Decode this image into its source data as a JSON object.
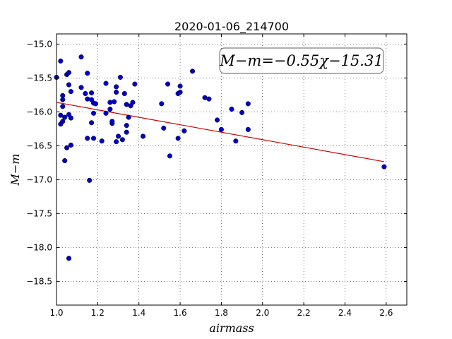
{
  "chart_data": {
    "type": "scatter",
    "title": "2020-01-06_214700",
    "xlabel": "airmass",
    "ylabel": "M−m",
    "xlim": [
      1.0,
      2.7
    ],
    "ylim": [
      -18.85,
      -14.85
    ],
    "y_inverted": true,
    "grid": true,
    "xticks": [
      1.0,
      1.2,
      1.4,
      1.6,
      1.8,
      2.0,
      2.2,
      2.4,
      2.6
    ],
    "yticks": [
      -15.0,
      -15.5,
      -16.0,
      -16.5,
      -17.0,
      -17.5,
      -18.0,
      -18.5
    ],
    "point_color": "#0000cc",
    "fit_color": "#cc0000",
    "annotation": "M−m=−0.55χ−15.31",
    "fit_line": {
      "slope": -0.55,
      "intercept": -15.31,
      "x": [
        1.0,
        2.59
      ]
    },
    "series": [
      {
        "x": [
          1.0,
          1.02,
          1.02,
          1.02,
          1.03,
          1.03,
          1.03,
          1.03,
          1.04,
          1.04,
          1.05,
          1.05,
          1.06,
          1.06,
          1.06,
          1.06,
          1.07,
          1.07,
          1.07,
          1.12,
          1.12,
          1.14,
          1.15,
          1.15,
          1.15,
          1.16,
          1.17,
          1.17,
          1.17,
          1.18,
          1.18,
          1.18,
          1.19,
          1.22,
          1.24,
          1.24,
          1.26,
          1.26,
          1.27,
          1.27,
          1.28,
          1.29,
          1.29,
          1.29,
          1.3,
          1.31,
          1.32,
          1.33,
          1.34,
          1.34,
          1.34,
          1.35,
          1.36,
          1.37,
          1.38,
          1.42,
          1.51,
          1.52,
          1.54,
          1.55,
          1.59,
          1.59,
          1.6,
          1.6,
          1.62,
          1.66,
          1.72,
          1.74,
          1.78,
          1.8,
          1.85,
          1.87,
          1.9,
          1.93,
          1.93,
          2.59
        ],
        "y": [
          -15.49,
          -15.25,
          -16.05,
          -16.18,
          -15.76,
          -15.82,
          -15.92,
          -16.14,
          -16.08,
          -16.72,
          -15.45,
          -16.53,
          -15.42,
          -15.6,
          -16.04,
          -18.16,
          -15.7,
          -16.09,
          -16.49,
          -15.19,
          -15.64,
          -15.73,
          -15.43,
          -15.81,
          -16.39,
          -17.01,
          -15.72,
          -15.82,
          -16.16,
          -16.02,
          -16.39,
          -15.87,
          -15.88,
          -16.43,
          -15.58,
          -16.02,
          -15.86,
          -15.96,
          -16.17,
          -16.14,
          -15.85,
          -15.63,
          -15.71,
          -16.44,
          -16.36,
          -15.49,
          -16.41,
          -15.73,
          -15.89,
          -16.3,
          -16.2,
          -16.08,
          -15.91,
          -15.86,
          -15.59,
          -16.36,
          -15.88,
          -16.24,
          -15.59,
          -16.65,
          -16.39,
          -15.73,
          -15.62,
          -15.71,
          -16.28,
          -15.4,
          -15.79,
          -15.81,
          -16.12,
          -16.26,
          -15.96,
          -16.43,
          -16.01,
          -15.88,
          -16.26,
          -16.81
        ]
      }
    ]
  }
}
